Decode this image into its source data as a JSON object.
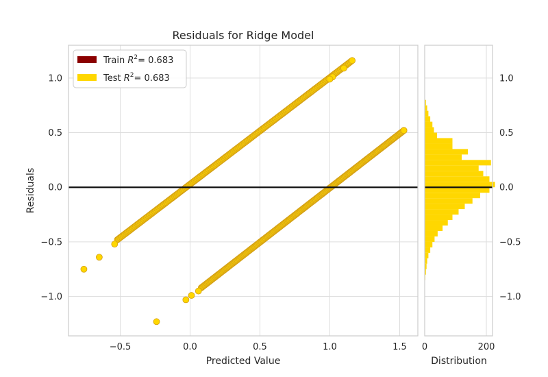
{
  "chart_data": {
    "type": "scatter",
    "title": "Residuals for Ridge Model",
    "xlabel": "Predicted Value",
    "ylabel": "Residuals",
    "dist_xlabel": "Distribution",
    "xlim": [
      -0.87,
      1.63
    ],
    "ylim": [
      -1.36,
      1.3
    ],
    "xticks": [
      -0.5,
      0.0,
      0.5,
      1.0,
      1.5
    ],
    "xtick_labels": [
      "−0.5",
      "0.0",
      "0.5",
      "1.0",
      "1.5"
    ],
    "yticks": [
      -1.0,
      -0.5,
      0.0,
      0.5,
      1.0
    ],
    "ytick_labels": [
      "−1.0",
      "−0.5",
      "0.0",
      "0.5",
      "1.0"
    ],
    "dist_xlim": [
      0,
      220
    ],
    "dist_xticks": [
      0,
      200
    ],
    "dist_xtick_labels": [
      "0",
      "200"
    ],
    "grid": true,
    "legend_position": "top-left",
    "legend": [
      {
        "name": "Train",
        "label_prefix": "Train",
        "r2_text": "= 0.683",
        "color": "#8b0000"
      },
      {
        "name": "Test",
        "label_prefix": "Test",
        "r2_text": "= 0.683",
        "color": "#ffd700"
      }
    ],
    "zero_line_color": "#111111",
    "point_color": "#ffd700",
    "point_edge_color": "#d4a017",
    "series": [
      {
        "name": "Upper band",
        "x_range": [
          -0.52,
          1.16
        ],
        "y_range": [
          -0.48,
          1.16
        ]
      },
      {
        "name": "Lower band",
        "x_range": [
          0.08,
          1.53
        ],
        "y_range": [
          -0.92,
          0.52
        ]
      }
    ],
    "outliers": [
      {
        "x": -0.76,
        "y": -0.75
      },
      {
        "x": -0.65,
        "y": -0.64
      },
      {
        "x": -0.54,
        "y": -0.52
      },
      {
        "x": -0.24,
        "y": -1.23
      },
      {
        "x": -0.03,
        "y": -1.03
      },
      {
        "x": 0.01,
        "y": -0.99
      },
      {
        "x": 0.06,
        "y": -0.95
      },
      {
        "x": 1.1,
        "y": 1.09
      },
      {
        "x": 1.02,
        "y": 1.01
      },
      {
        "x": 1.0,
        "y": 0.99
      },
      {
        "x": 1.53,
        "y": 0.52
      }
    ],
    "histogram": {
      "bin_edges": [
        -0.9,
        -0.85,
        -0.8,
        -0.75,
        -0.7,
        -0.65,
        -0.6,
        -0.55,
        -0.5,
        -0.45,
        -0.4,
        -0.35,
        -0.3,
        -0.25,
        -0.2,
        -0.15,
        -0.1,
        -0.05,
        0.0,
        0.05,
        0.1,
        0.15,
        0.2,
        0.25,
        0.3,
        0.35,
        0.4,
        0.45,
        0.5,
        0.55,
        0.6,
        0.65,
        0.7,
        0.75,
        0.8
      ],
      "counts": [
        1,
        2,
        4,
        6,
        8,
        12,
        18,
        25,
        32,
        42,
        58,
        75,
        90,
        110,
        130,
        155,
        180,
        210,
        228,
        210,
        190,
        175,
        215,
        120,
        140,
        90,
        90,
        40,
        30,
        25,
        18,
        12,
        8,
        4
      ]
    }
  }
}
